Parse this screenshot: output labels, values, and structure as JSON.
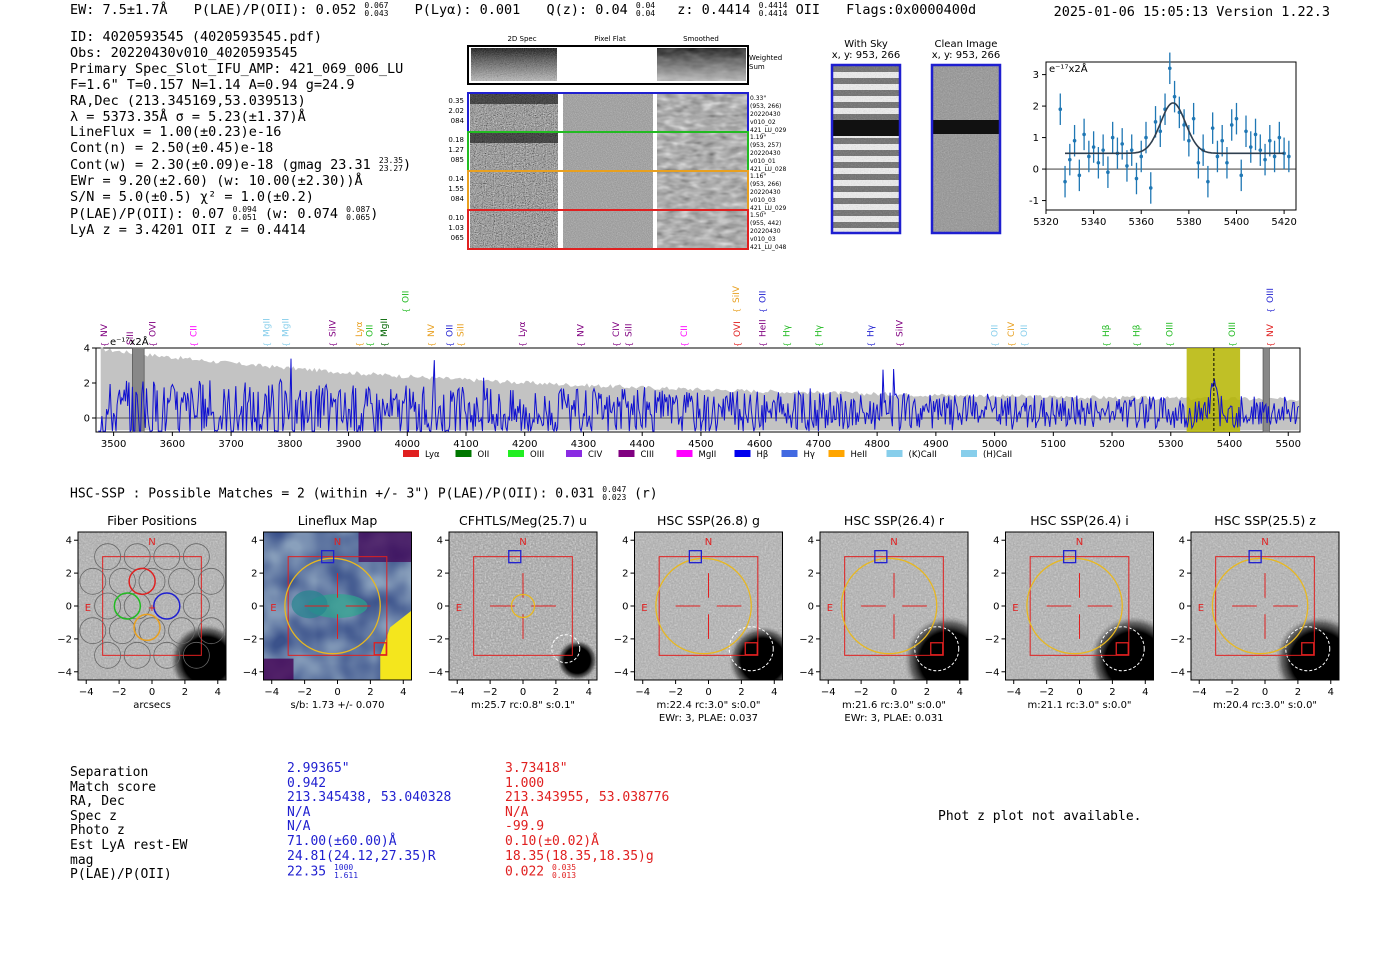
{
  "header": {
    "ew": "EW: 7.5±1.7Å",
    "plae": "P(LAE)/P(OII): 0.052",
    "plae_hi": "0.067",
    "plae_lo": "0.043",
    "plya": "P(Lyα): 0.001",
    "qz": "Q(z): 0.04",
    "qz_hi": "0.04",
    "qz_lo": "0.04",
    "z": "z: 0.4414",
    "z_hi": "0.4414",
    "z_lo": "0.4414",
    "z_line": "OII",
    "flags": "Flags:0x0000400d",
    "timestamp": "2025-01-06 15:05:13  Version 1.22.3"
  },
  "info": {
    "id": "ID: 4020593545 (4020593545.pdf)",
    "obs": "Obs: 20220430v010_4020593545",
    "primary": "Primary Spec_Slot_IFU_AMP: 421_069_006_LU",
    "fiber": "F=1.6\"  T=0.157  N=1.14  A=0.94  g=24.9",
    "radec": "RA,Dec (213.345169,53.039513)",
    "lambda": "λ = 5373.35Å  σ = 5.23(±1.37)Å",
    "lineflux": "LineFlux = 1.00(±0.23)e-16",
    "contn": "Cont(n) = 2.50(±0.45)e-18",
    "contw": "Cont(w) = 2.30(±0.09)e-18 (gmag 23.31",
    "contw_hi": "23.35",
    "contw_lo": "23.27",
    "ewr": "EWr = 9.20(±2.60) (w: 10.00(±2.30))Å",
    "sn": "S/N = 5.0(±0.5)  χ² = 1.0(±0.2)",
    "plae": "P(LAE)/P(OII): 0.07",
    "plae_hi": "0.094",
    "plae_lo": "0.051",
    "plae_w": "(w: 0.074",
    "plae_w_hi": "0.087",
    "plae_w_lo": "0.065",
    "lyaz": "LyA z = 3.4201  OII z = 0.4414"
  },
  "spec2d": {
    "col_titles": [
      "2D Spec",
      "Pixel Flat",
      "Smoothed"
    ],
    "weighted_label": "Weighted Sum",
    "rows": [
      {
        "left": [
          "0.35",
          "2.02",
          "084"
        ],
        "right": [
          "0.33\"",
          "(953, 266)",
          "20220430",
          "v010_02",
          "421_LU_029"
        ],
        "color": "#1f1fd0"
      },
      {
        "left": [
          "0.18",
          "1.27",
          "085"
        ],
        "right": [
          "1.19\"",
          "(953, 257)",
          "20220430",
          "v010_01",
          "421_LU_028"
        ],
        "color": "#22bb22"
      },
      {
        "left": [
          "0.14",
          "1.55",
          "084"
        ],
        "right": [
          "1.16\"",
          "(953, 266)",
          "20220430",
          "v010_03",
          "421_LU_029"
        ],
        "color": "#e8a020"
      },
      {
        "left": [
          "0.10",
          "1.03",
          "065"
        ],
        "right": [
          "1.50\"",
          "(955, 442)",
          "20220430",
          "v010_03",
          "421_LU_048"
        ],
        "color": "#e02020"
      }
    ]
  },
  "sky": {
    "with_sky_title": "With Sky",
    "with_sky_sub": "x, y: 953, 266",
    "clean_title": "Clean Image",
    "clean_sub": "x, y: 953, 266"
  },
  "colors": {
    "blue": "#1f1fd0",
    "red": "#e02020",
    "green": "#22bb22",
    "orange": "#e8a020",
    "gold": "#e8b820",
    "mpl_blue": "#1f77b4",
    "olive": "#b5b500",
    "grey": "#c0c0c0"
  },
  "zoom_chart": {
    "type": "scatter",
    "ylabel": "e⁻¹⁷x2Å",
    "xlim": [
      5320,
      5425
    ],
    "ylim": [
      -1.3,
      3.4
    ],
    "xticks": [
      5320,
      5340,
      5360,
      5380,
      5400,
      5420
    ],
    "yticks": [
      -1,
      0,
      1,
      2,
      3
    ],
    "x": [
      5326,
      5328,
      5330,
      5332,
      5334,
      5336,
      5338,
      5340,
      5342,
      5344,
      5346,
      5348,
      5350,
      5352,
      5354,
      5356,
      5358,
      5360,
      5362,
      5364,
      5366,
      5368,
      5370,
      5372,
      5374,
      5376,
      5378,
      5380,
      5382,
      5384,
      5386,
      5388,
      5390,
      5392,
      5394,
      5396,
      5398,
      5400,
      5402,
      5404,
      5406,
      5408,
      5410,
      5412,
      5414,
      5416,
      5418,
      5420,
      5422
    ],
    "y": [
      1.9,
      -0.4,
      0.3,
      0.9,
      -0.2,
      1.1,
      0.4,
      0.7,
      0.2,
      0.6,
      -0.1,
      1.0,
      0.5,
      0.8,
      0.1,
      0.6,
      -0.3,
      0.4,
      1.0,
      -0.6,
      1.5,
      1.2,
      1.9,
      3.2,
      2.3,
      1.8,
      1.4,
      0.9,
      1.6,
      0.2,
      0.6,
      -0.4,
      1.3,
      0.4,
      0.9,
      0.2,
      1.4,
      1.6,
      -0.2,
      1.2,
      0.7,
      1.1,
      0.6,
      0.3,
      0.9,
      0.4,
      1.0,
      0.5,
      0.4
    ],
    "err": [
      0.5,
      0.5,
      0.5,
      0.5,
      0.5,
      0.5,
      0.5,
      0.5,
      0.5,
      0.5,
      0.5,
      0.5,
      0.5,
      0.5,
      0.5,
      0.5,
      0.5,
      0.5,
      0.5,
      0.5,
      0.5,
      0.5,
      0.5,
      0.5,
      0.5,
      0.5,
      0.5,
      0.5,
      0.5,
      0.5,
      0.5,
      0.5,
      0.5,
      0.5,
      0.5,
      0.5,
      0.5,
      0.5,
      0.5,
      0.5,
      0.5,
      0.5,
      0.5,
      0.5,
      0.5,
      0.5,
      0.5,
      0.5,
      0.5
    ],
    "model": {
      "baseline": 0.5,
      "amplitude": 1.6,
      "center": 5373.35,
      "sigma": 5.23,
      "xmin": 5328,
      "xmax": 5420
    }
  },
  "full_spectrum": {
    "type": "line",
    "ylabel": "e⁻¹⁷x2Å",
    "xlim": [
      3470,
      5520
    ],
    "ylim": [
      -0.8,
      4.0
    ],
    "xticks": [
      3500,
      3600,
      3700,
      3800,
      3900,
      4000,
      4100,
      4200,
      4300,
      4400,
      4500,
      4600,
      4700,
      4800,
      4900,
      5000,
      5100,
      5200,
      5300,
      5400,
      5500
    ],
    "yticks": [
      0,
      2,
      4
    ],
    "highlight_range": [
      5327,
      5418
    ],
    "line_center": 5373.35,
    "masked": [
      [
        3532,
        3552
      ],
      [
        5457,
        5468
      ]
    ],
    "line_markers": [
      {
        "label": "NV",
        "w": 3470,
        "color": "#800080",
        "row": 1
      },
      {
        "label": "SiII",
        "w": 3528,
        "color": "#800080",
        "row": 2
      },
      {
        "label": "OVI",
        "w": 3566,
        "color": "#800080",
        "row": 1
      },
      {
        "label": "CII",
        "w": 3636,
        "color": "#ff00ff",
        "row": 1
      },
      {
        "label": "MgII",
        "w": 3760,
        "color": "#87ceeb",
        "row": 1
      },
      {
        "label": "MgII",
        "w": 3793,
        "color": "#87ceeb",
        "row": 1
      },
      {
        "label": "SiIV",
        "w": 3873,
        "color": "#800080",
        "row": 1
      },
      {
        "label": "Lyα",
        "w": 3918,
        "color": "#e8a020",
        "row": 1
      },
      {
        "label": "OII",
        "w": 3936,
        "color": "#22bb22",
        "row": 1
      },
      {
        "label": "MgII",
        "w": 3960,
        "color": "#006400",
        "row": 1
      },
      {
        "label": "OII",
        "w": 3997,
        "color": "#22bb22",
        "row": 0
      },
      {
        "label": "NV",
        "w": 4040,
        "color": "#e8a020",
        "row": 1
      },
      {
        "label": "OII",
        "w": 4072,
        "color": "#1f1fd0",
        "row": 1
      },
      {
        "label": "SiII",
        "w": 4091,
        "color": "#e8a020",
        "row": 1
      },
      {
        "label": "Lyα",
        "w": 4195,
        "color": "#800080",
        "row": 1
      },
      {
        "label": "NV",
        "w": 4295,
        "color": "#800080",
        "row": 1
      },
      {
        "label": "CIV",
        "w": 4355,
        "color": "#800080",
        "row": 1
      },
      {
        "label": "SiII",
        "w": 4377,
        "color": "#800080",
        "row": 1
      },
      {
        "label": "CII",
        "w": 4471,
        "color": "#ff00ff",
        "row": 1
      },
      {
        "label": "SiIV",
        "w": 4560,
        "color": "#e8a020",
        "row": 0
      },
      {
        "label": "OVI",
        "w": 4561,
        "color": "#e02020",
        "row": 1
      },
      {
        "label": "OII",
        "w": 4605,
        "color": "#1f1fd0",
        "row": 0
      },
      {
        "label": "HeII",
        "w": 4605,
        "color": "#800080",
        "row": 1
      },
      {
        "label": "Hγ",
        "w": 4646,
        "color": "#22bb22",
        "row": 1
      },
      {
        "label": "Hγ",
        "w": 4700,
        "color": "#22bb22",
        "row": 1
      },
      {
        "label": "Hγ",
        "w": 4789,
        "color": "#1f1fd0",
        "row": 1
      },
      {
        "label": "SiIV",
        "w": 4838,
        "color": "#800080",
        "row": 1
      },
      {
        "label": "OII",
        "w": 5000,
        "color": "#87ceeb",
        "row": 1
      },
      {
        "label": "CIV",
        "w": 5028,
        "color": "#e8a020",
        "row": 1
      },
      {
        "label": "OII",
        "w": 5050,
        "color": "#87ceeb",
        "row": 1
      },
      {
        "label": "Hβ",
        "w": 5190,
        "color": "#22bb22",
        "row": 1
      },
      {
        "label": "Hβ",
        "w": 5242,
        "color": "#22bb22",
        "row": 1
      },
      {
        "label": "OIII",
        "w": 5298,
        "color": "#22bb22",
        "row": 1
      },
      {
        "label": "OIII",
        "w": 5404,
        "color": "#22bb22",
        "row": 1
      },
      {
        "label": "NV",
        "w": 5469,
        "color": "#e02020",
        "row": 1
      },
      {
        "label": "OIII",
        "w": 5469,
        "color": "#1f1fd0",
        "row": 0
      }
    ],
    "legend": [
      {
        "label": "Lyα",
        "color": "#e02020"
      },
      {
        "label": "OII",
        "color": "#007700"
      },
      {
        "label": "OIII",
        "color": "#22ee22"
      },
      {
        "label": "CIV",
        "color": "#8a2be2"
      },
      {
        "label": "CIII",
        "color": "#800080"
      },
      {
        "label": "MgII",
        "color": "#ff00ff"
      },
      {
        "label": "Hβ",
        "color": "#0000ee"
      },
      {
        "label": "Hγ",
        "color": "#4169e1"
      },
      {
        "label": "HeII",
        "color": "#ffa500"
      },
      {
        "label": "(K)CaII",
        "color": "#87ceeb"
      },
      {
        "label": "(H)CaII",
        "color": "#87ceeb"
      }
    ]
  },
  "hsc": {
    "line": "HSC-SSP : Possible Matches = 2 (within +/- 3\")  P(LAE)/P(OII): 0.031",
    "hi": "0.047",
    "lo": "0.023",
    "band": "(r)"
  },
  "cutouts": [
    {
      "title": "Fiber Positions",
      "type": "fibers",
      "label1": "arcsecs",
      "label2": ""
    },
    {
      "title": "Lineflux Map",
      "type": "lineflux",
      "label1": "s/b: 1.73 +/- 0.070",
      "label2": ""
    },
    {
      "title": "CFHTLS/Meg(25.7) u",
      "type": "u",
      "label1": "m:25.7 rc:0.8\"  s:0.1\"",
      "label2": ""
    },
    {
      "title": "HSC SSP(26.8) g",
      "type": "g",
      "label1": "m:22.4 rc:3.0\"  s:0.0\"",
      "label2": "EWr: 3, PLAE: 0.037"
    },
    {
      "title": "HSC SSP(26.4) r",
      "type": "r",
      "label1": "m:21.6 rc:3.0\"  s:0.0\"",
      "label2": "EWr: 3, PLAE: 0.031"
    },
    {
      "title": "HSC SSP(26.4) i",
      "type": "i",
      "label1": "m:21.1 rc:3.0\"  s:0.0\"",
      "label2": ""
    },
    {
      "title": "HSC SSP(25.5) z",
      "type": "z",
      "label1": "m:20.4 rc:3.0\"  s:0.0\"",
      "label2": ""
    }
  ],
  "cutout_axes": {
    "ticks": [
      -4,
      -2,
      0,
      2,
      4
    ],
    "north": "N",
    "east": "E"
  },
  "matches": {
    "labels": [
      "Separation",
      "Match score",
      "RA, Dec",
      "Spec z",
      "Photo z",
      "Est LyA rest-EW",
      "mag",
      "P(LAE)/P(OII)"
    ],
    "col1": [
      "2.99365\"",
      "0.942",
      "213.345438, 53.040328",
      "N/A",
      "N/A",
      "71.00(±60.00)Å",
      "24.81(24.12,27.35)R",
      "22.35"
    ],
    "col1_hi": "1000",
    "col1_lo": "1.611",
    "col2": [
      "3.73418\"",
      "1.000",
      "213.343955, 53.038776",
      "N/A",
      "-99.9",
      "0.10(±0.02)Å",
      "18.35(18.35,18.35)g",
      "0.022"
    ],
    "col2_hi": "0.035",
    "col2_lo": "0.013"
  },
  "phot_z": "Phot z plot not available."
}
